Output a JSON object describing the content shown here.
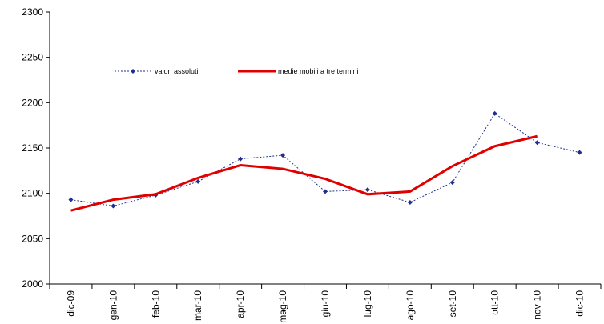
{
  "chart_data": {
    "type": "line",
    "categories": [
      "dic-09",
      "gen-10",
      "feb-10",
      "mar-10",
      "apr-10",
      "mag-10",
      "giu-10",
      "lug-10",
      "ago-10",
      "set-10",
      "ott-10",
      "nov-10",
      "dic-10"
    ],
    "series": [
      {
        "name": "valori assoluti",
        "color": "#1f2f8f",
        "values": [
          2093,
          2086,
          2098,
          2113,
          2138,
          2142,
          2102,
          2104,
          2090,
          2112,
          2188,
          2156,
          2145
        ]
      },
      {
        "name": "medie mobili a tre termini",
        "color": "#e00000",
        "values": [
          2081,
          2093,
          2099,
          2117,
          2131,
          2127,
          2116,
          2099,
          2102,
          2130,
          2152,
          2163,
          null
        ]
      }
    ],
    "ylim": [
      2000,
      2300
    ],
    "yticks": [
      2000,
      2050,
      2100,
      2150,
      2200,
      2250,
      2300
    ],
    "grid": false,
    "legend": "top-left"
  }
}
